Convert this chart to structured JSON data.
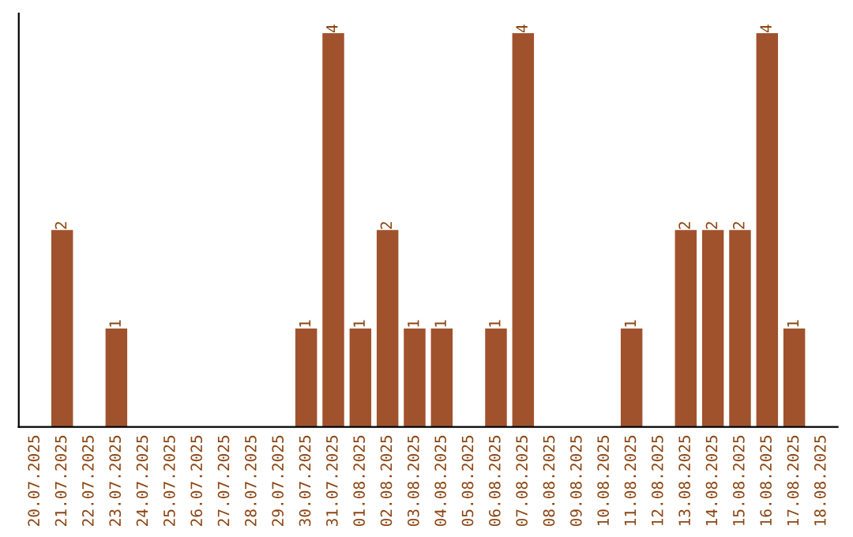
{
  "chart_data": {
    "type": "bar",
    "categories": [
      "20.07.2025",
      "21.07.2025",
      "22.07.2025",
      "23.07.2025",
      "24.07.2025",
      "25.07.2025",
      "26.07.2025",
      "27.07.2025",
      "28.07.2025",
      "29.07.2025",
      "30.07.2025",
      "31.07.2025",
      "01.08.2025",
      "02.08.2025",
      "03.08.2025",
      "04.08.2025",
      "05.08.2025",
      "06.08.2025",
      "07.08.2025",
      "08.08.2025",
      "09.08.2025",
      "10.08.2025",
      "11.08.2025",
      "12.08.2025",
      "13.08.2025",
      "14.08.2025",
      "15.08.2025",
      "16.08.2025",
      "17.08.2025",
      "18.08.2025"
    ],
    "values": [
      0,
      2,
      0,
      1,
      0,
      0,
      0,
      0,
      0,
      0,
      1,
      4,
      1,
      2,
      1,
      1,
      0,
      1,
      4,
      0,
      0,
      0,
      1,
      0,
      2,
      2,
      2,
      4,
      1,
      0
    ],
    "value_labels": [
      null,
      "2",
      null,
      "1",
      null,
      null,
      null,
      null,
      null,
      null,
      "1",
      "4",
      "1",
      "2",
      "1",
      "1",
      null,
      "1",
      "4",
      null,
      null,
      null,
      "1",
      null,
      "2",
      "2",
      "2",
      "4",
      "1",
      null
    ],
    "color": "#a0522d",
    "ylim": [
      0,
      4.2
    ],
    "tick_labels": "x",
    "grid": false,
    "legend": false
  }
}
